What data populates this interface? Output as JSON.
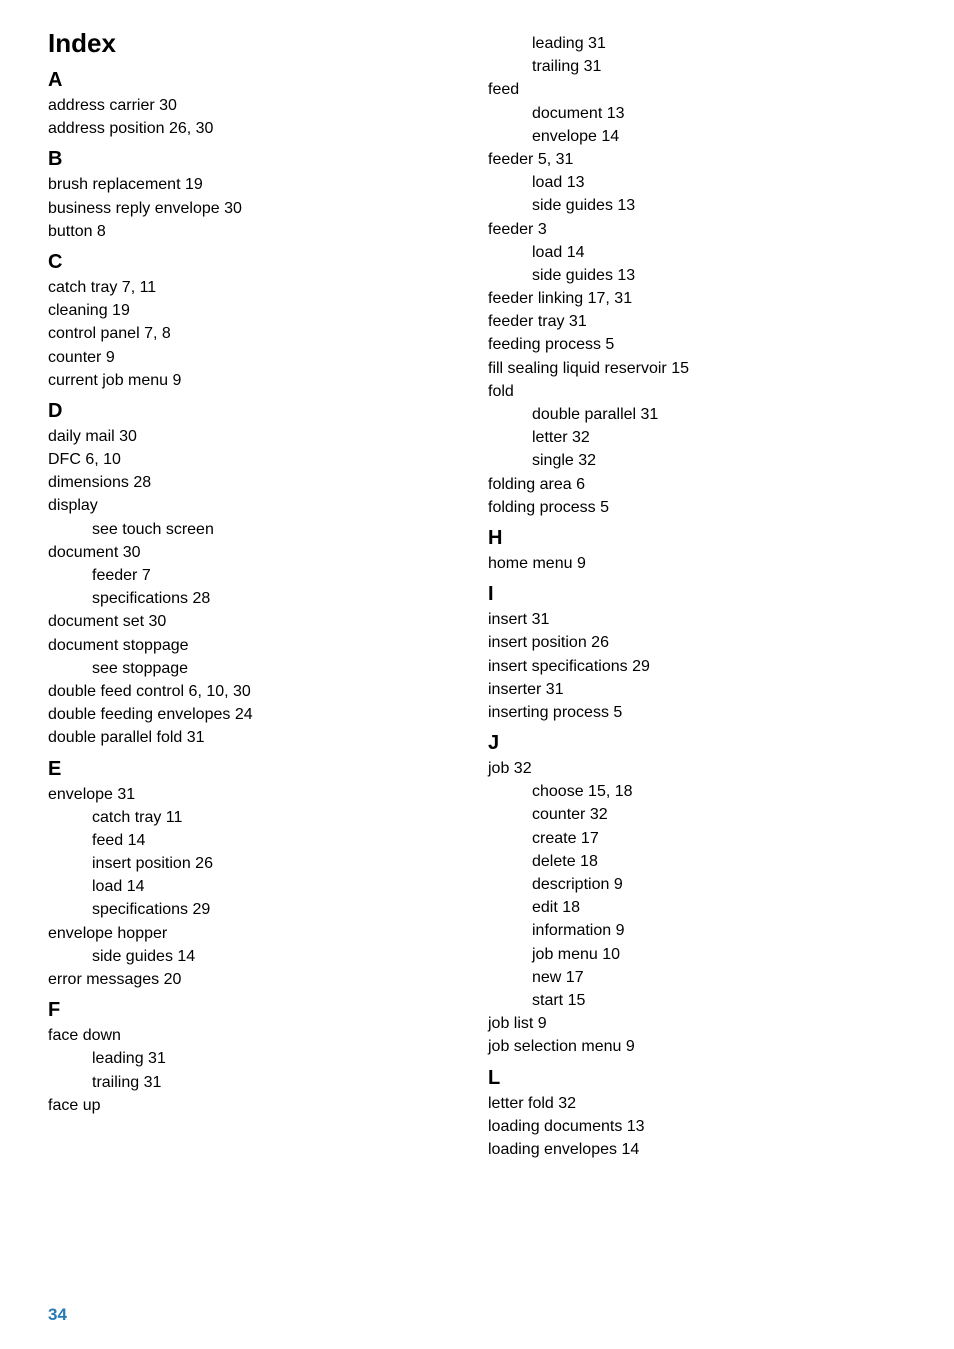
{
  "pageNumber": "34",
  "title": "Index",
  "left": [
    {
      "type": "letter",
      "text": "A"
    },
    {
      "type": "entry",
      "text": "address carrier 30"
    },
    {
      "type": "entry",
      "text": "address position 26, 30"
    },
    {
      "type": "letter",
      "text": "B"
    },
    {
      "type": "entry",
      "text": "brush replacement 19"
    },
    {
      "type": "entry",
      "text": "business reply envelope 30"
    },
    {
      "type": "entry",
      "text": "button 8"
    },
    {
      "type": "letter",
      "text": "C"
    },
    {
      "type": "entry",
      "text": "catch tray 7, 11"
    },
    {
      "type": "entry",
      "text": "cleaning 19"
    },
    {
      "type": "entry",
      "text": "control panel 7, 8"
    },
    {
      "type": "entry",
      "text": "counter 9"
    },
    {
      "type": "entry",
      "text": "current job menu 9"
    },
    {
      "type": "letter",
      "text": "D"
    },
    {
      "type": "entry",
      "text": "daily mail 30"
    },
    {
      "type": "entry",
      "text": "DFC 6, 10"
    },
    {
      "type": "entry",
      "text": "dimensions 28"
    },
    {
      "type": "entry",
      "text": "display"
    },
    {
      "type": "sub",
      "text": "see touch screen"
    },
    {
      "type": "entry",
      "text": "document 30"
    },
    {
      "type": "sub",
      "text": "feeder 7"
    },
    {
      "type": "sub",
      "text": "specifications 28"
    },
    {
      "type": "entry",
      "text": "document set 30"
    },
    {
      "type": "entry",
      "text": "document stoppage"
    },
    {
      "type": "sub",
      "text": "see stoppage"
    },
    {
      "type": "entry",
      "text": "double feed control 6, 10, 30"
    },
    {
      "type": "entry",
      "text": "double feeding envelopes 24"
    },
    {
      "type": "entry",
      "text": "double parallel fold 31"
    },
    {
      "type": "letter",
      "text": "E"
    },
    {
      "type": "entry",
      "text": "envelope 31"
    },
    {
      "type": "sub",
      "text": "catch tray 11"
    },
    {
      "type": "sub",
      "text": "feed 14"
    },
    {
      "type": "sub",
      "text": "insert position 26"
    },
    {
      "type": "sub",
      "text": "load 14"
    },
    {
      "type": "sub",
      "text": "specifications 29"
    },
    {
      "type": "entry",
      "text": "envelope hopper"
    },
    {
      "type": "sub",
      "text": "side guides 14"
    },
    {
      "type": "entry",
      "text": "error messages 20"
    },
    {
      "type": "letter",
      "text": "F"
    },
    {
      "type": "entry",
      "text": "face down"
    },
    {
      "type": "sub",
      "text": "leading 31"
    },
    {
      "type": "sub",
      "text": "trailing 31"
    },
    {
      "type": "entry",
      "text": "face up"
    }
  ],
  "right": [
    {
      "type": "sub",
      "text": "leading 31"
    },
    {
      "type": "sub",
      "text": "trailing 31"
    },
    {
      "type": "entry",
      "text": "feed"
    },
    {
      "type": "sub",
      "text": "document 13"
    },
    {
      "type": "sub",
      "text": "envelope 14"
    },
    {
      "type": "entry",
      "text": "feeder 5, 31"
    },
    {
      "type": "sub",
      "text": "load 13"
    },
    {
      "type": "sub",
      "text": "side guides 13"
    },
    {
      "type": "entry",
      "text": "feeder 3"
    },
    {
      "type": "sub",
      "text": "load 14"
    },
    {
      "type": "sub",
      "text": "side guides 13"
    },
    {
      "type": "entry",
      "text": "feeder linking 17, 31"
    },
    {
      "type": "entry",
      "text": "feeder tray 31"
    },
    {
      "type": "entry",
      "text": "feeding process 5"
    },
    {
      "type": "entry",
      "text": "fill sealing liquid reservoir 15"
    },
    {
      "type": "entry",
      "text": "fold"
    },
    {
      "type": "sub",
      "text": "double parallel 31"
    },
    {
      "type": "sub",
      "text": "letter 32"
    },
    {
      "type": "sub",
      "text": "single 32"
    },
    {
      "type": "entry",
      "text": "folding area 6"
    },
    {
      "type": "entry",
      "text": "folding process 5"
    },
    {
      "type": "letter",
      "text": "H"
    },
    {
      "type": "entry",
      "text": "home menu 9"
    },
    {
      "type": "letter",
      "text": "I"
    },
    {
      "type": "entry",
      "text": "insert 31"
    },
    {
      "type": "entry",
      "text": "insert position 26"
    },
    {
      "type": "entry",
      "text": "insert specifications 29"
    },
    {
      "type": "entry",
      "text": "inserter 31"
    },
    {
      "type": "entry",
      "text": "inserting process 5"
    },
    {
      "type": "letter",
      "text": "J"
    },
    {
      "type": "entry",
      "text": "job 32"
    },
    {
      "type": "sub",
      "text": "choose 15, 18"
    },
    {
      "type": "sub",
      "text": "counter 32"
    },
    {
      "type": "sub",
      "text": "create 17"
    },
    {
      "type": "sub",
      "text": "delete 18"
    },
    {
      "type": "sub",
      "text": "description 9"
    },
    {
      "type": "sub",
      "text": "edit 18"
    },
    {
      "type": "sub",
      "text": "information 9"
    },
    {
      "type": "sub",
      "text": "job menu 10"
    },
    {
      "type": "sub",
      "text": "new 17"
    },
    {
      "type": "sub",
      "text": "start 15"
    },
    {
      "type": "entry",
      "text": "job list 9"
    },
    {
      "type": "entry",
      "text": "job selection menu 9"
    },
    {
      "type": "letter",
      "text": "L"
    },
    {
      "type": "entry",
      "text": "letter fold 32"
    },
    {
      "type": "entry",
      "text": "loading documents 13"
    },
    {
      "type": "entry",
      "text": "loading envelopes 14"
    }
  ]
}
